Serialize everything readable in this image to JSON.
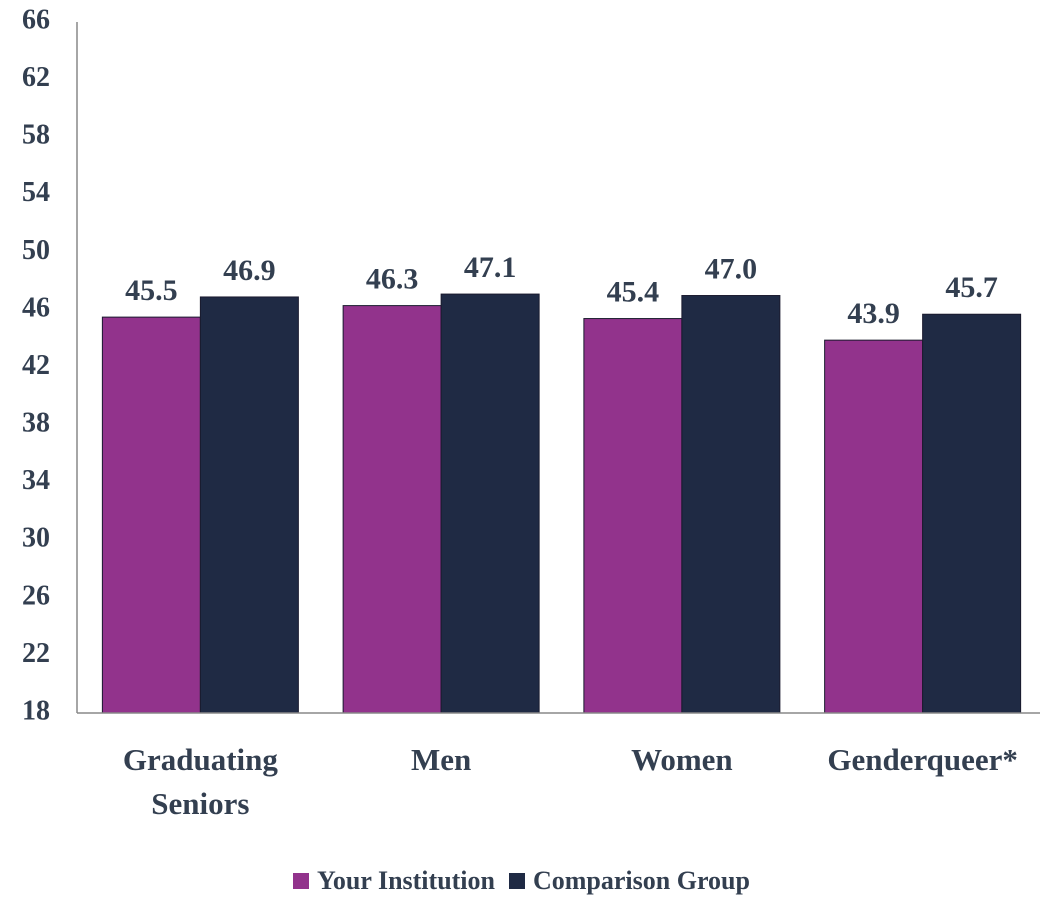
{
  "chart_data": {
    "type": "bar",
    "categories": [
      "Graduating Seniors",
      "Men",
      "Women",
      "Genderqueer*"
    ],
    "series": [
      {
        "name": "Your Institution",
        "color": "#92338c",
        "values": [
          45.5,
          46.3,
          45.4,
          43.9
        ],
        "value_labels": [
          "45.5",
          "46.3",
          "45.4",
          "43.9"
        ]
      },
      {
        "name": "Comparison Group",
        "color": "#1f2a44",
        "values": [
          46.9,
          47.1,
          47.0,
          45.7
        ],
        "value_labels": [
          "46.9",
          "47.1",
          "47.0",
          "45.7"
        ]
      }
    ],
    "ylim": [
      18,
      66
    ],
    "yticks": [
      18,
      22,
      26,
      30,
      34,
      38,
      42,
      46,
      50,
      54,
      58,
      62,
      66
    ],
    "grid": false,
    "legend": "bottom"
  }
}
